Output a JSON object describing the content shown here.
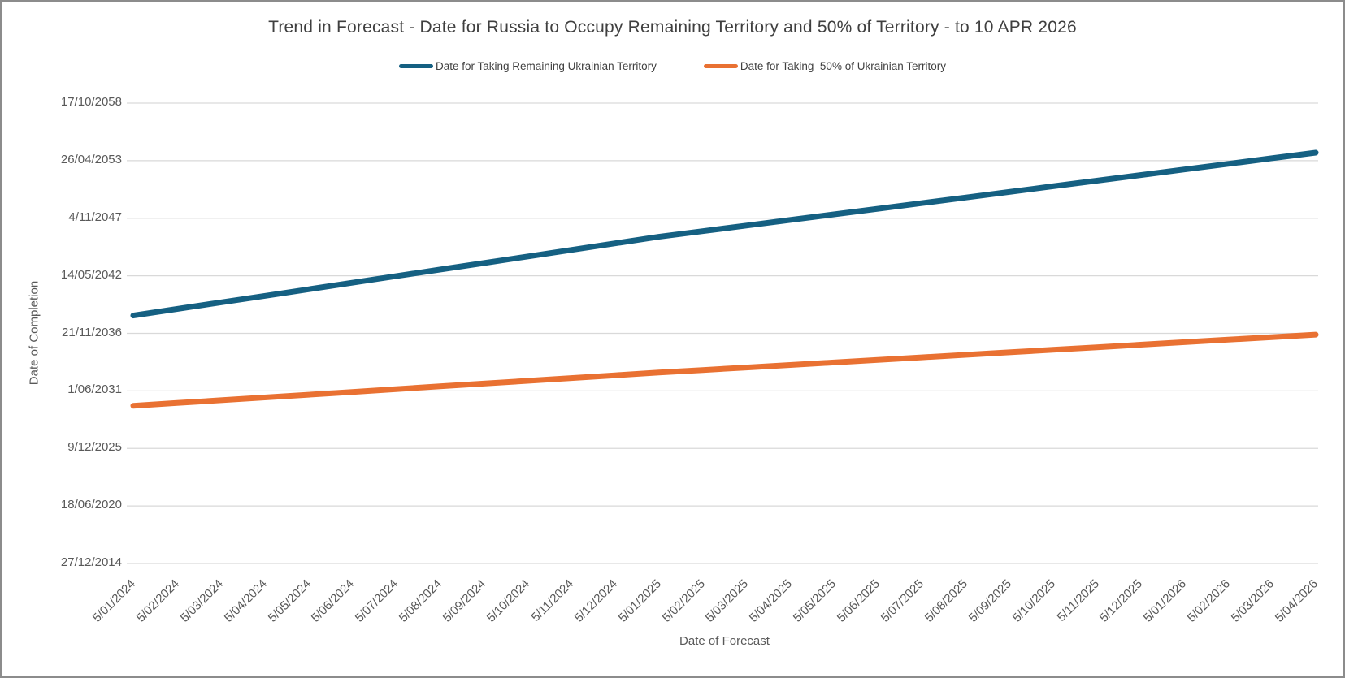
{
  "window": {
    "background": "#ffffff",
    "border_color": "#8c8c8c"
  },
  "chart_data": {
    "type": "line",
    "title": "Trend in Forecast - Date for Russia to Occupy Remaining Territory and 50% of Territory - to 10 APR 2026",
    "xlabel": "Date of Forecast",
    "ylabel": "Date of Completion",
    "legend_position": "top",
    "grid": true,
    "gridline_color": "#d9d9d9",
    "y_axis": {
      "min_date": "2014-12-27",
      "max_date": "2058-10-17",
      "major_unit_days": 2000,
      "tick_labels_top_to_bottom": [
        "17/10/2058",
        "26/04/2053",
        "4/11/2047",
        "14/05/2042",
        "21/11/2036",
        "1/06/2031",
        "9/12/2025",
        "18/06/2020",
        "27/12/2014"
      ]
    },
    "x_categories": [
      "5/01/2024",
      "5/02/2024",
      "5/03/2024",
      "5/04/2024",
      "5/05/2024",
      "5/06/2024",
      "5/07/2024",
      "5/08/2024",
      "5/09/2024",
      "5/10/2024",
      "5/11/2024",
      "5/12/2024",
      "5/01/2025",
      "5/02/2025",
      "5/03/2025",
      "5/04/2025",
      "5/05/2025",
      "5/06/2025",
      "5/07/2025",
      "5/08/2025",
      "5/09/2025",
      "5/10/2025",
      "5/11/2025",
      "5/12/2025",
      "5/01/2026",
      "5/02/2026",
      "5/03/2026",
      "5/04/2026"
    ],
    "series": [
      {
        "name": "Date for Taking Remaining Ukrainian Territory",
        "color": "#156082",
        "stroke_width": 7,
        "values": [
          "2038-08-01",
          "2039-03-17",
          "2039-10-31",
          "2040-06-15",
          "2041-01-29",
          "2041-09-14",
          "2042-04-30",
          "2042-12-14",
          "2043-07-30",
          "2044-03-14",
          "2044-10-28",
          "2045-06-13",
          "2046-01-27",
          "2046-08-10",
          "2047-02-21",
          "2047-09-04",
          "2048-03-17",
          "2048-09-28",
          "2049-04-11",
          "2049-10-23",
          "2050-05-06",
          "2050-11-17",
          "2051-05-31",
          "2051-12-12",
          "2052-06-24",
          "2053-01-05",
          "2053-07-19",
          "2054-01-30"
        ]
      },
      {
        "name": "Date for Taking  50% of Ukrainian Territory",
        "color": "#e97132",
        "stroke_width": 7,
        "values": [
          "2030-01-01",
          "2030-04-07",
          "2030-07-12",
          "2030-10-16",
          "2031-01-20",
          "2031-04-26",
          "2031-07-31",
          "2031-11-04",
          "2032-02-08",
          "2032-05-14",
          "2032-08-18",
          "2032-11-22",
          "2033-02-26",
          "2033-05-25",
          "2033-08-21",
          "2033-11-17",
          "2034-02-13",
          "2034-05-12",
          "2034-08-08",
          "2034-11-04",
          "2035-01-31",
          "2035-04-29",
          "2035-07-26",
          "2035-10-22",
          "2036-01-18",
          "2036-04-15",
          "2036-07-12",
          "2036-10-08"
        ]
      }
    ]
  }
}
